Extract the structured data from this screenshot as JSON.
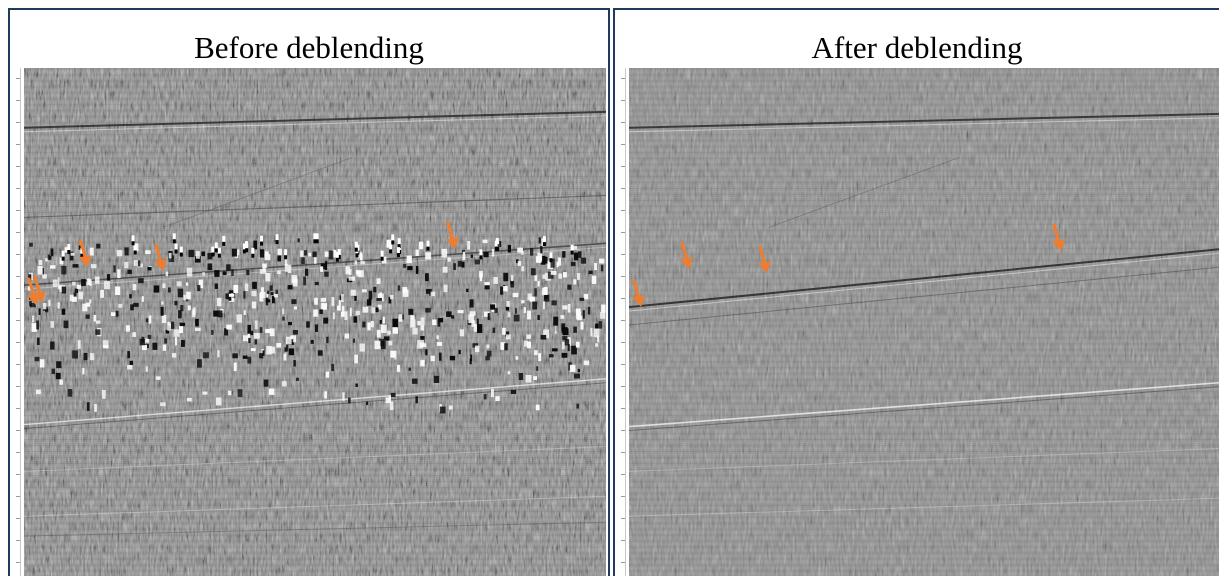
{
  "panels": [
    {
      "title": "Before deblending",
      "state": "with blending noise"
    },
    {
      "title": "After deblending",
      "state": "noise removed"
    }
  ],
  "colors": {
    "frame": "#1f3a5c",
    "seismic_background": "#8c8c8c",
    "arrow": "#ed7d31"
  },
  "icons": [
    "orange-arrow-icon"
  ],
  "left_arrow_count": 5,
  "right_arrow_count": 4
}
